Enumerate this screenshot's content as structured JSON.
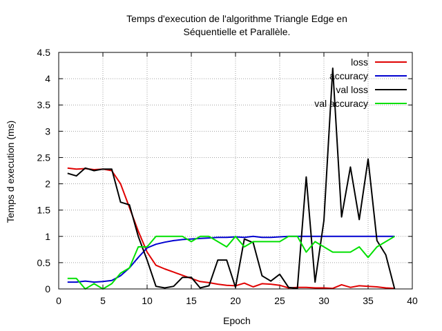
{
  "chart_data": {
    "type": "line",
    "title_line1": "Temps d'execution de l'algorithme Triangle Edge en",
    "title_line2": "Séquentielle et Parallèle.",
    "xlabel": "Epoch",
    "ylabel": "Temps d execution (ms)",
    "xlim": [
      0,
      40
    ],
    "ylim": [
      0,
      4.5
    ],
    "x_ticks": [
      "0",
      "5",
      "10",
      "15",
      "20",
      "25",
      "30",
      "35",
      "40"
    ],
    "y_ticks": [
      "0",
      "0.5",
      "1",
      "1.5",
      "2",
      "2.5",
      "3",
      "3.5",
      "4",
      "4.5"
    ],
    "grid": true,
    "legend_position": "top-right",
    "series": [
      {
        "name": "loss",
        "color": "#e00000",
        "x": [
          1,
          2,
          3,
          4,
          5,
          6,
          7,
          8,
          9,
          10,
          11,
          12,
          13,
          14,
          15,
          16,
          17,
          18,
          19,
          20,
          21,
          22,
          23,
          24,
          25,
          26,
          27,
          28,
          29,
          30,
          31,
          32,
          33,
          34,
          35,
          36,
          37,
          38
        ],
        "values": [
          2.3,
          2.28,
          2.29,
          2.27,
          2.28,
          2.25,
          2.0,
          1.55,
          1.1,
          0.7,
          0.45,
          0.38,
          0.32,
          0.26,
          0.2,
          0.14,
          0.12,
          0.09,
          0.07,
          0.06,
          0.11,
          0.04,
          0.1,
          0.09,
          0.07,
          0.02,
          0.03,
          0.03,
          0.02,
          0.02,
          0.01,
          0.08,
          0.03,
          0.06,
          0.05,
          0.04,
          0.02,
          0.01
        ]
      },
      {
        "name": "accuracy",
        "color": "#0000d0",
        "x": [
          1,
          2,
          3,
          4,
          5,
          6,
          7,
          8,
          9,
          10,
          11,
          12,
          13,
          14,
          15,
          16,
          17,
          18,
          19,
          20,
          21,
          22,
          23,
          24,
          25,
          26,
          27,
          28,
          29,
          30,
          31,
          32,
          33,
          34,
          35,
          36,
          37,
          38
        ],
        "values": [
          0.13,
          0.13,
          0.15,
          0.13,
          0.14,
          0.16,
          0.25,
          0.4,
          0.6,
          0.78,
          0.85,
          0.89,
          0.92,
          0.94,
          0.95,
          0.96,
          0.97,
          0.98,
          0.98,
          0.99,
          0.98,
          1.0,
          0.98,
          0.98,
          0.99,
          1.0,
          1.0,
          1.0,
          1.0,
          1.0,
          1.0,
          1.0,
          1.0,
          1.0,
          1.0,
          1.0,
          1.0,
          1.0
        ]
      },
      {
        "name": "val loss",
        "color": "#000000",
        "x": [
          1,
          2,
          3,
          4,
          5,
          6,
          7,
          8,
          9,
          10,
          11,
          12,
          13,
          14,
          15,
          16,
          17,
          18,
          19,
          20,
          21,
          22,
          23,
          24,
          25,
          26,
          27,
          28,
          29,
          30,
          31,
          32,
          33,
          34,
          35,
          36,
          37,
          38
        ],
        "values": [
          2.2,
          2.15,
          2.3,
          2.25,
          2.28,
          2.28,
          1.65,
          1.6,
          1.0,
          0.55,
          0.05,
          0.02,
          0.05,
          0.22,
          0.22,
          0.02,
          0.06,
          0.55,
          0.55,
          0.03,
          0.95,
          0.88,
          0.25,
          0.15,
          0.28,
          0.03,
          0.01,
          2.13,
          0.13,
          1.3,
          4.2,
          1.37,
          2.32,
          1.32,
          2.47,
          0.92,
          0.65,
          0.0
        ]
      },
      {
        "name": "val accuracy",
        "color": "#00e000",
        "x": [
          1,
          2,
          3,
          4,
          5,
          6,
          7,
          8,
          9,
          10,
          11,
          12,
          13,
          14,
          15,
          16,
          17,
          18,
          19,
          20,
          21,
          22,
          23,
          24,
          25,
          26,
          27,
          28,
          29,
          30,
          31,
          32,
          33,
          34,
          35,
          36,
          37,
          38
        ],
        "values": [
          0.2,
          0.2,
          0.0,
          0.1,
          0.0,
          0.1,
          0.3,
          0.4,
          0.8,
          0.8,
          1.0,
          1.0,
          1.0,
          1.0,
          0.9,
          1.0,
          1.0,
          0.9,
          0.8,
          1.0,
          0.8,
          0.9,
          0.9,
          0.9,
          0.9,
          1.0,
          1.0,
          0.7,
          0.9,
          0.8,
          0.7,
          0.7,
          0.7,
          0.8,
          0.6,
          0.8,
          0.9,
          1.0
        ]
      }
    ]
  }
}
